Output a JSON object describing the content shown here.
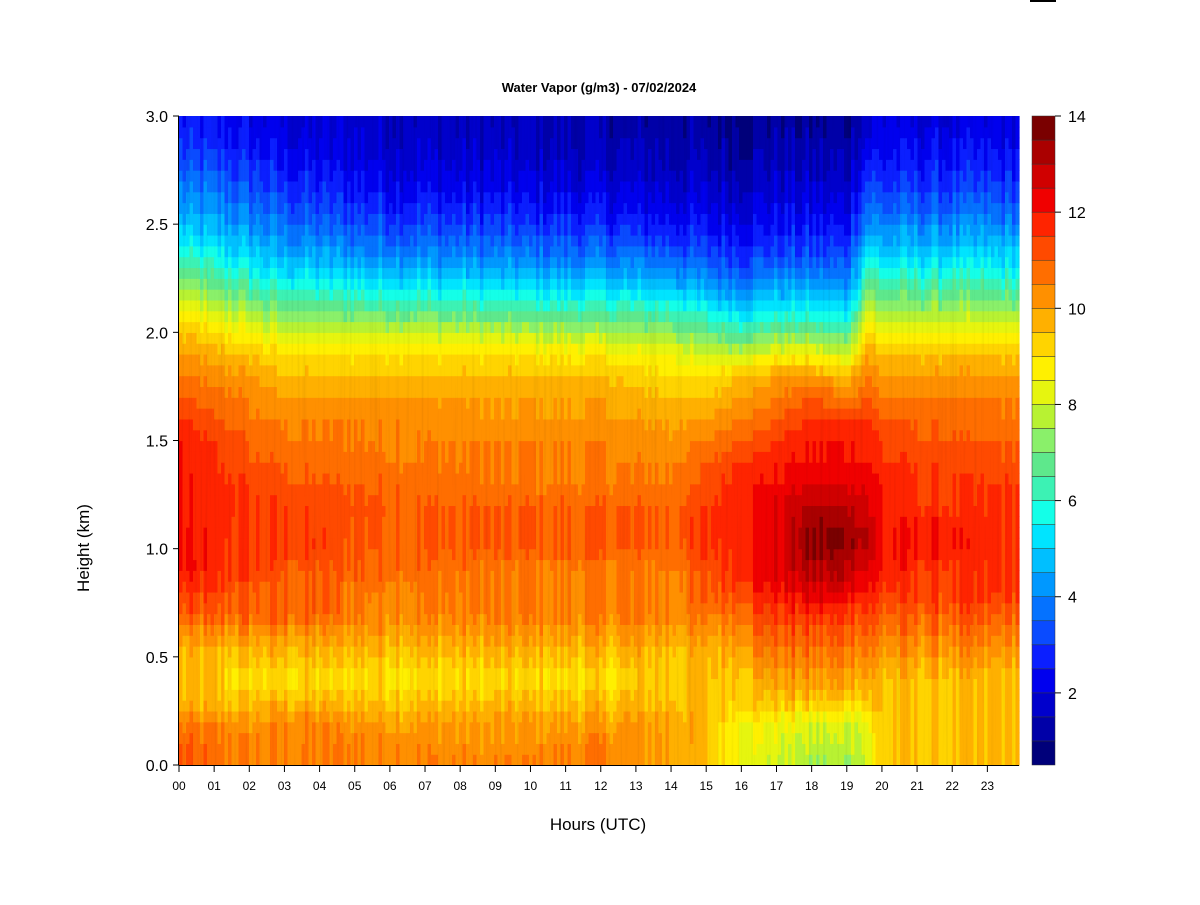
{
  "chart_data": {
    "type": "heatmap",
    "title": "Water Vapor (g/m3) - 07/02/2024",
    "xlabel": "Hours (UTC)",
    "ylabel": "Height (km)",
    "x_ticks": [
      "00",
      "01",
      "02",
      "03",
      "04",
      "05",
      "06",
      "07",
      "08",
      "09",
      "10",
      "11",
      "12",
      "13",
      "14",
      "15",
      "16",
      "17",
      "18",
      "19",
      "20",
      "21",
      "22",
      "23"
    ],
    "y_ticks": [
      "0.0",
      "0.5",
      "1.0",
      "1.5",
      "2.0",
      "2.5",
      "3.0"
    ],
    "xlim": [
      0,
      23.9
    ],
    "ylim": [
      0.0,
      3.0
    ],
    "colorbar": {
      "min": 0.5,
      "max": 14,
      "ticks": [
        "2",
        "4",
        "6",
        "8",
        "10",
        "12",
        "14"
      ],
      "colors": [
        "#00007a",
        "#0000a8",
        "#0000cc",
        "#0000ee",
        "#0b1fff",
        "#0a4bff",
        "#0572ff",
        "#0098ff",
        "#00bfff",
        "#00e4ff",
        "#14ffe8",
        "#3cf2b4",
        "#5ee88c",
        "#8af06a",
        "#b8f232",
        "#e6f50f",
        "#fff000",
        "#ffd400",
        "#ffb000",
        "#ff9000",
        "#ff6e00",
        "#ff4a00",
        "#ff2400",
        "#f00000",
        "#d00000",
        "#aa0000",
        "#7a0000"
      ]
    },
    "grid": false,
    "z_profile_note": "",
    "hours_sampled": [
      0,
      2,
      3,
      6,
      9,
      12,
      14,
      15,
      16,
      17,
      18,
      19,
      19.6,
      20,
      21,
      23.9
    ],
    "heights_sampled_km": [
      0.0,
      0.1,
      0.2,
      0.3,
      0.4,
      0.5,
      0.6,
      0.7,
      0.8,
      0.9,
      1.0,
      1.1,
      1.2,
      1.3,
      1.4,
      1.5,
      1.6,
      1.7,
      1.8,
      1.9,
      2.0,
      2.1,
      2.2,
      2.3,
      2.4,
      2.5,
      2.6,
      2.7,
      2.8,
      2.9,
      3.0
    ],
    "values_gm3": [
      [
        11.0,
        11.0,
        10.5,
        9.5,
        9.5,
        9.5,
        10.0,
        11.0,
        11.5,
        12.0,
        12.0,
        12.0,
        12.0,
        12.0,
        12.0,
        12.0,
        11.5,
        11.0,
        10.5,
        10.0,
        9.5,
        8.5,
        7.5,
        6.5,
        5.5,
        4.8,
        4.2,
        3.8,
        3.2,
        2.8,
        2.5
      ],
      [
        10.5,
        10.5,
        10.0,
        9.5,
        9.0,
        9.5,
        10.0,
        11.0,
        11.0,
        11.5,
        11.5,
        11.5,
        11.5,
        11.5,
        11.0,
        11.0,
        10.5,
        10.5,
        10.0,
        9.5,
        8.5,
        7.5,
        6.5,
        5.5,
        4.8,
        4.2,
        3.7,
        3.2,
        2.8,
        2.4,
        2.2
      ],
      [
        10.5,
        10.5,
        10.5,
        9.5,
        9.0,
        9.5,
        10.0,
        11.0,
        11.0,
        11.0,
        11.5,
        11.5,
        11.5,
        11.0,
        11.0,
        10.5,
        10.5,
        10.0,
        9.5,
        9.0,
        8.0,
        7.0,
        6.0,
        5.0,
        4.3,
        3.7,
        3.2,
        2.8,
        2.4,
        2.1,
        2.0
      ],
      [
        10.5,
        10.5,
        10.0,
        9.5,
        9.0,
        9.5,
        10.0,
        10.5,
        10.5,
        11.0,
        11.0,
        11.0,
        11.0,
        11.0,
        10.5,
        10.5,
        10.5,
        10.0,
        9.5,
        9.0,
        8.0,
        6.8,
        5.6,
        4.6,
        3.8,
        3.2,
        2.7,
        2.3,
        2.0,
        1.8,
        1.7
      ],
      [
        10.5,
        10.0,
        10.0,
        9.5,
        9.0,
        9.5,
        10.0,
        10.5,
        10.5,
        10.5,
        11.0,
        11.0,
        11.0,
        10.5,
        10.5,
        10.5,
        10.0,
        10.0,
        9.5,
        9.0,
        7.8,
        6.5,
        5.4,
        4.4,
        3.6,
        3.0,
        2.5,
        2.1,
        1.8,
        1.6,
        1.5
      ],
      [
        10.5,
        10.5,
        10.0,
        9.5,
        9.0,
        9.5,
        10.0,
        10.5,
        10.5,
        10.5,
        11.0,
        11.0,
        11.0,
        10.5,
        10.5,
        10.5,
        10.0,
        10.0,
        9.5,
        8.8,
        7.6,
        6.3,
        5.2,
        4.2,
        3.4,
        2.8,
        2.3,
        1.9,
        1.6,
        1.4,
        1.3
      ],
      [
        10.0,
        10.0,
        10.0,
        9.5,
        9.5,
        9.5,
        10.0,
        10.5,
        10.5,
        10.5,
        11.0,
        11.0,
        11.0,
        10.5,
        10.5,
        10.0,
        10.0,
        9.5,
        9.0,
        8.5,
        7.4,
        6.2,
        5.0,
        4.0,
        3.2,
        2.6,
        2.1,
        1.8,
        1.5,
        1.3,
        1.2
      ],
      [
        9.5,
        9.5,
        9.5,
        9.5,
        9.5,
        9.5,
        10.0,
        10.5,
        11.0,
        11.0,
        11.5,
        11.5,
        11.5,
        11.0,
        11.0,
        10.5,
        10.0,
        9.5,
        9.0,
        8.0,
        6.8,
        5.6,
        4.5,
        3.6,
        2.9,
        2.4,
        2.0,
        1.7,
        1.4,
        1.2,
        1.1
      ],
      [
        8.5,
        8.5,
        8.8,
        9.5,
        9.5,
        10.0,
        10.5,
        11.0,
        11.5,
        12.0,
        12.0,
        12.0,
        12.0,
        12.0,
        11.5,
        11.0,
        10.5,
        10.0,
        9.5,
        8.0,
        6.5,
        5.2,
        4.2,
        3.4,
        2.8,
        2.3,
        1.9,
        1.6,
        1.3,
        1.1,
        1.0
      ],
      [
        8.0,
        8.2,
        8.5,
        9.5,
        10.0,
        10.5,
        11.0,
        11.5,
        12.0,
        12.5,
        12.5,
        12.5,
        12.5,
        12.0,
        12.0,
        11.5,
        11.0,
        10.5,
        10.0,
        8.5,
        7.0,
        5.5,
        4.5,
        3.6,
        3.0,
        2.5,
        2.1,
        1.8,
        1.5,
        1.3,
        1.1
      ],
      [
        7.5,
        7.8,
        8.2,
        9.5,
        10.0,
        10.5,
        11.0,
        11.5,
        12.5,
        13.0,
        13.5,
        13.5,
        13.0,
        12.5,
        12.0,
        12.0,
        11.5,
        11.0,
        10.0,
        8.5,
        7.0,
        5.5,
        4.5,
        3.6,
        3.0,
        2.5,
        2.1,
        1.7,
        1.4,
        1.2,
        1.0
      ],
      [
        7.5,
        7.8,
        8.2,
        9.5,
        10.0,
        10.5,
        11.0,
        11.5,
        12.5,
        13.0,
        13.5,
        13.5,
        13.0,
        12.5,
        12.0,
        12.0,
        11.5,
        10.5,
        9.5,
        8.0,
        6.5,
        5.2,
        4.2,
        3.5,
        2.9,
        2.4,
        2.0,
        1.7,
        1.4,
        1.2,
        1.0
      ],
      [
        8.0,
        8.2,
        8.5,
        9.5,
        10.0,
        10.5,
        11.0,
        11.5,
        12.0,
        12.5,
        13.0,
        13.0,
        12.5,
        12.5,
        12.0,
        12.0,
        11.5,
        11.0,
        10.5,
        10.0,
        9.0,
        8.0,
        7.0,
        6.0,
        5.0,
        4.2,
        3.6,
        3.0,
        2.5,
        2.1,
        1.9
      ],
      [
        9.5,
        9.5,
        9.5,
        9.5,
        9.5,
        10.0,
        10.5,
        11.0,
        11.5,
        12.0,
        12.0,
        12.0,
        12.0,
        12.0,
        11.5,
        11.5,
        11.0,
        10.5,
        10.0,
        9.5,
        8.5,
        7.5,
        6.5,
        5.5,
        4.7,
        4.0,
        3.4,
        2.9,
        2.5,
        2.2,
        2.0
      ],
      [
        9.5,
        9.5,
        9.5,
        9.5,
        9.5,
        10.0,
        10.5,
        11.0,
        11.5,
        11.5,
        12.0,
        12.0,
        11.5,
        11.5,
        11.5,
        11.0,
        11.0,
        10.5,
        10.0,
        9.5,
        8.5,
        7.5,
        6.5,
        5.5,
        4.7,
        4.0,
        3.4,
        2.9,
        2.5,
        2.2,
        2.0
      ],
      [
        9.5,
        9.5,
        9.5,
        9.5,
        9.5,
        10.0,
        10.5,
        11.0,
        11.5,
        11.5,
        11.5,
        11.5,
        11.5,
        11.5,
        11.0,
        11.0,
        10.5,
        10.5,
        10.0,
        9.5,
        8.5,
        7.5,
        6.5,
        5.5,
        4.7,
        4.0,
        3.4,
        2.9,
        2.5,
        2.2,
        2.0
      ]
    ]
  }
}
